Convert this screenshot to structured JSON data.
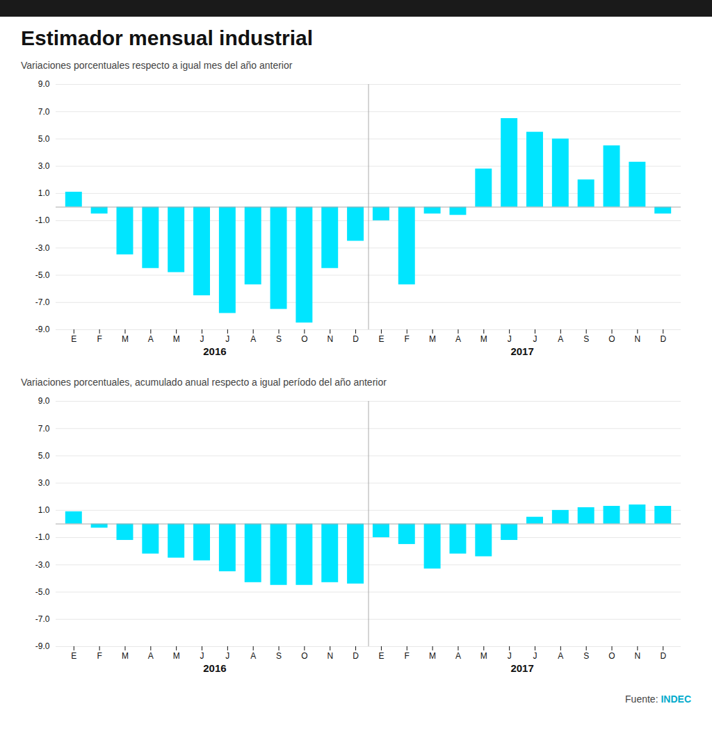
{
  "chart_data": [
    {
      "type": "bar",
      "title": "Estimador mensual industrial",
      "subtitle": "Variaciones porcentuales respecto a igual mes del año anterior",
      "categories": [
        "E",
        "F",
        "M",
        "A",
        "M",
        "J",
        "J",
        "A",
        "S",
        "O",
        "N",
        "D",
        "E",
        "F",
        "M",
        "A",
        "M",
        "J",
        "J",
        "A",
        "S",
        "O",
        "N",
        "D"
      ],
      "annotations": [
        "2016",
        "2017"
      ],
      "values": [
        1.1,
        -0.5,
        -3.5,
        -4.5,
        -4.8,
        -6.5,
        -7.8,
        -5.7,
        -7.5,
        -8.5,
        -4.5,
        -2.5,
        -1.0,
        -5.7,
        -0.5,
        -0.6,
        2.8,
        6.5,
        5.5,
        5.0,
        2.0,
        4.5,
        3.3,
        -0.5
      ],
      "color": "#00E5FF",
      "ylim": [
        -9.0,
        9.0
      ],
      "yticks": [
        {
          "value": -9.0,
          "label": "-9.0"
        },
        {
          "value": -7.0,
          "label": "-7.0"
        },
        {
          "value": -5.0,
          "label": "-5.0"
        },
        {
          "value": -3.0,
          "label": "-3.0"
        },
        {
          "value": -1.0,
          "label": "-1.0"
        },
        {
          "value": 1.0,
          "label": "1.0"
        },
        {
          "value": 3.0,
          "label": "3.0"
        },
        {
          "value": 5.0,
          "label": "5.0"
        },
        {
          "value": 7.0,
          "label": "7.0"
        },
        {
          "value": 9.0,
          "label": "9.0"
        }
      ],
      "grid": true
    },
    {
      "type": "bar",
      "subtitle": "Variaciones porcentuales, acumulado anual respecto a igual período del año anterior",
      "categories": [
        "E",
        "F",
        "M",
        "A",
        "M",
        "J",
        "J",
        "A",
        "S",
        "O",
        "N",
        "D",
        "E",
        "F",
        "M",
        "A",
        "M",
        "J",
        "J",
        "A",
        "S",
        "O",
        "N",
        "D"
      ],
      "annotations": [
        "2016",
        "2017"
      ],
      "values": [
        0.9,
        -0.3,
        -1.2,
        -2.2,
        -2.5,
        -2.7,
        -3.5,
        -4.3,
        -4.5,
        -4.5,
        -4.3,
        -4.4,
        -1.0,
        -1.5,
        -3.3,
        -2.2,
        -2.4,
        -1.2,
        0.5,
        1.0,
        1.2,
        1.3,
        1.4,
        1.3
      ],
      "color": "#00E5FF",
      "ylim": [
        -9.0,
        9.0
      ],
      "yticks": [
        {
          "value": -9.0,
          "label": "-9.0"
        },
        {
          "value": -7.0,
          "label": "-7.0"
        },
        {
          "value": -5.0,
          "label": "-5.0"
        },
        {
          "value": -3.0,
          "label": "-3.0"
        },
        {
          "value": -1.0,
          "label": "-1.0"
        },
        {
          "value": 1.0,
          "label": "1.0"
        },
        {
          "value": 3.0,
          "label": "3.0"
        },
        {
          "value": 5.0,
          "label": "5.0"
        },
        {
          "value": 7.0,
          "label": "7.0"
        },
        {
          "value": 9.0,
          "label": "9.0"
        }
      ],
      "grid": true,
      "caption": "Fuente: INDEC"
    }
  ]
}
